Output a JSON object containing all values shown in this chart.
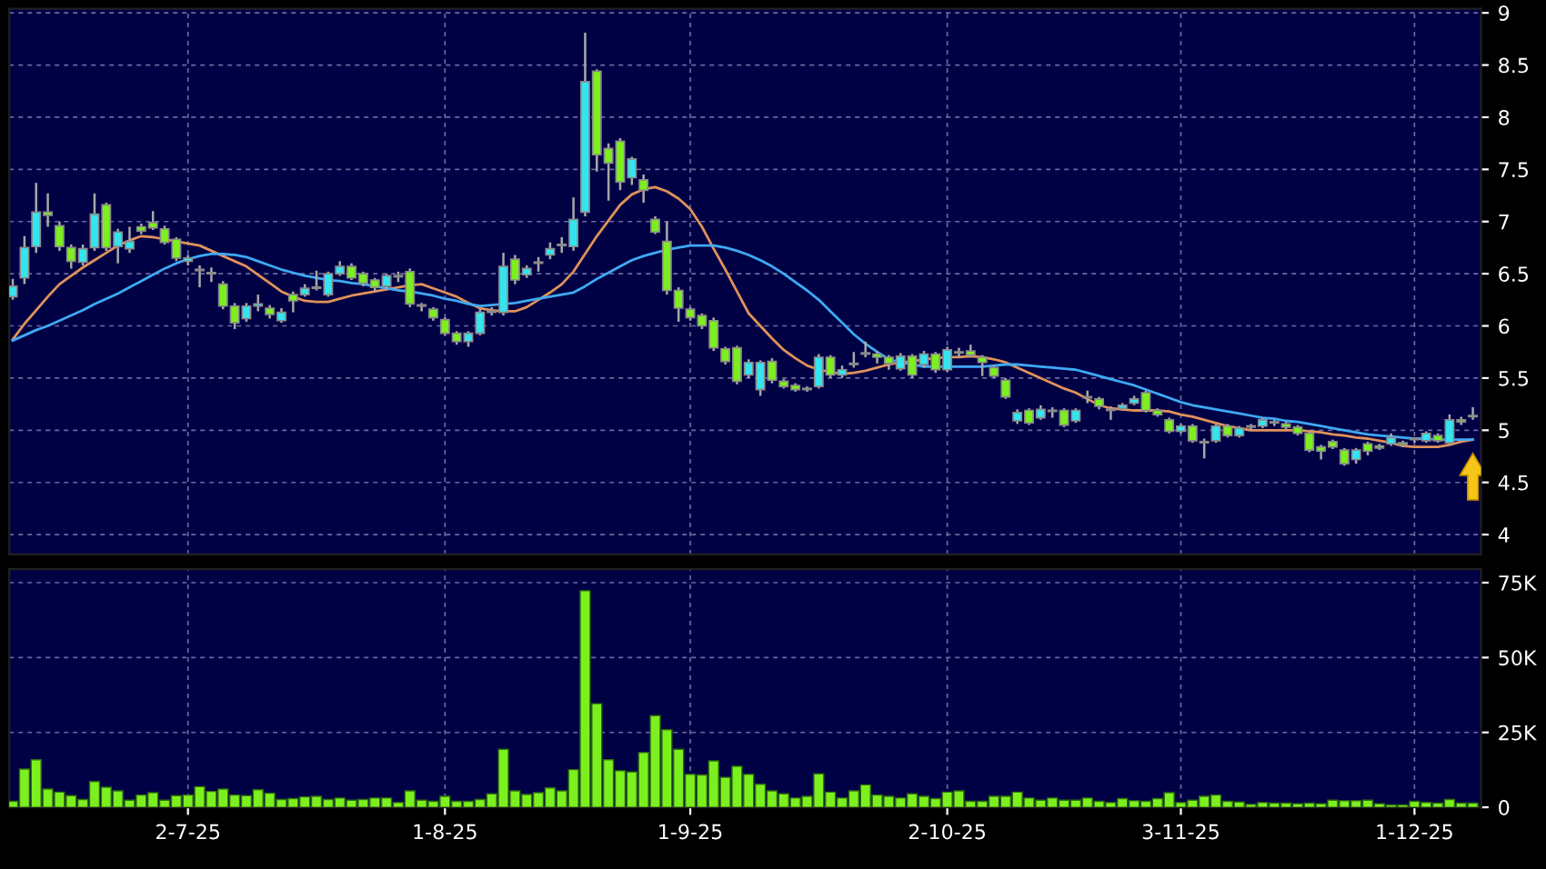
{
  "chart_data": [
    {
      "type": "candlestick",
      "categories": [
        null,
        null,
        null,
        null,
        null,
        null,
        null,
        null,
        null,
        null,
        null,
        null,
        null,
        null,
        null,
        null,
        null,
        null,
        null,
        null,
        null,
        null,
        null,
        null,
        null,
        null,
        null,
        null,
        null,
        null,
        null,
        null,
        null,
        null,
        null,
        null,
        null,
        null,
        null,
        null,
        null,
        null,
        null,
        null,
        null,
        null,
        null,
        null,
        null,
        null,
        null,
        null,
        null,
        null,
        null,
        null,
        null,
        null,
        null,
        null,
        null,
        null,
        null,
        null,
        null,
        null,
        null,
        null,
        null,
        null,
        null,
        null,
        null,
        null,
        null,
        null,
        null,
        null,
        null,
        null,
        null,
        null,
        null,
        null,
        null,
        null,
        null,
        null,
        null,
        null,
        null,
        null,
        null,
        null,
        null,
        null,
        null,
        null,
        null,
        null,
        null,
        null,
        null,
        null,
        null,
        null,
        null,
        null,
        null,
        null,
        null,
        null,
        null,
        null,
        null,
        null,
        null,
        null,
        null,
        null,
        null,
        null,
        null,
        null,
        null,
        null
      ],
      "ohlc": [
        [
          6.28,
          6.45,
          6.25,
          6.38
        ],
        [
          6.46,
          6.86,
          6.4,
          6.75
        ],
        [
          6.76,
          7.37,
          6.7,
          7.09
        ],
        [
          7.09,
          7.27,
          6.95,
          7.06
        ],
        [
          6.96,
          7.0,
          6.72,
          6.76
        ],
        [
          6.75,
          6.78,
          6.55,
          6.62
        ],
        [
          6.61,
          6.78,
          6.58,
          6.74
        ],
        [
          6.75,
          7.27,
          6.72,
          7.07
        ],
        [
          7.16,
          7.18,
          6.72,
          6.75
        ],
        [
          6.76,
          6.93,
          6.6,
          6.9
        ],
        [
          6.74,
          6.95,
          6.7,
          6.81
        ],
        [
          6.95,
          6.98,
          6.88,
          6.91
        ],
        [
          6.99,
          7.1,
          6.92,
          6.94
        ],
        [
          6.93,
          6.96,
          6.78,
          6.8
        ],
        [
          6.83,
          6.85,
          6.62,
          6.65
        ],
        [
          6.62,
          6.68,
          6.58,
          6.65
        ],
        [
          6.53,
          6.58,
          6.37,
          6.53
        ],
        [
          6.5,
          6.56,
          6.42,
          6.5
        ],
        [
          6.4,
          6.43,
          6.16,
          6.19
        ],
        [
          6.19,
          6.22,
          5.97,
          6.03
        ],
        [
          6.07,
          6.22,
          6.04,
          6.19
        ],
        [
          6.19,
          6.3,
          6.14,
          6.21
        ],
        [
          6.17,
          6.2,
          6.07,
          6.11
        ],
        [
          6.05,
          6.17,
          6.03,
          6.13
        ],
        [
          6.3,
          6.33,
          6.13,
          6.24
        ],
        [
          6.3,
          6.4,
          6.28,
          6.36
        ],
        [
          6.36,
          6.53,
          6.34,
          6.36
        ],
        [
          6.3,
          6.52,
          6.28,
          6.5
        ],
        [
          6.5,
          6.62,
          6.48,
          6.57
        ],
        [
          6.57,
          6.6,
          6.44,
          6.46
        ],
        [
          6.5,
          6.52,
          6.38,
          6.41
        ],
        [
          6.44,
          6.46,
          6.33,
          6.37
        ],
        [
          6.38,
          6.5,
          6.35,
          6.48
        ],
        [
          6.47,
          6.52,
          6.42,
          6.47
        ],
        [
          6.52,
          6.55,
          6.18,
          6.21
        ],
        [
          6.19,
          6.22,
          6.14,
          6.19
        ],
        [
          6.16,
          6.18,
          6.05,
          6.08
        ],
        [
          6.06,
          6.08,
          5.91,
          5.93
        ],
        [
          5.93,
          5.95,
          5.82,
          5.85
        ],
        [
          5.85,
          5.95,
          5.8,
          5.93
        ],
        [
          5.93,
          6.16,
          5.91,
          6.13
        ],
        [
          6.13,
          6.18,
          6.1,
          6.13
        ],
        [
          6.13,
          6.7,
          6.1,
          6.57
        ],
        [
          6.64,
          6.68,
          6.4,
          6.44
        ],
        [
          6.49,
          6.58,
          6.46,
          6.55
        ],
        [
          6.6,
          6.66,
          6.52,
          6.6
        ],
        [
          6.68,
          6.8,
          6.64,
          6.74
        ],
        [
          6.77,
          6.85,
          6.7,
          6.77
        ],
        [
          6.76,
          7.23,
          6.72,
          7.02
        ],
        [
          7.09,
          8.81,
          7.05,
          8.34
        ],
        [
          8.44,
          8.46,
          7.48,
          7.64
        ],
        [
          7.7,
          7.75,
          7.2,
          7.56
        ],
        [
          7.77,
          7.8,
          7.3,
          7.38
        ],
        [
          7.42,
          7.62,
          7.35,
          7.6
        ],
        [
          7.4,
          7.45,
          7.18,
          7.3
        ],
        [
          7.02,
          7.05,
          6.88,
          6.9
        ],
        [
          6.81,
          7.0,
          6.3,
          6.34
        ],
        [
          6.34,
          6.37,
          6.04,
          6.17
        ],
        [
          6.16,
          6.18,
          6.05,
          6.08
        ],
        [
          6.1,
          6.12,
          5.97,
          6.0
        ],
        [
          6.05,
          6.08,
          5.76,
          5.79
        ],
        [
          5.78,
          5.8,
          5.63,
          5.66
        ],
        [
          5.79,
          5.81,
          5.44,
          5.47
        ],
        [
          5.53,
          5.68,
          5.5,
          5.65
        ],
        [
          5.39,
          5.67,
          5.33,
          5.65
        ],
        [
          5.66,
          5.69,
          5.45,
          5.48
        ],
        [
          5.47,
          5.49,
          5.4,
          5.42
        ],
        [
          5.43,
          5.45,
          5.37,
          5.39
        ],
        [
          5.39,
          5.42,
          5.37,
          5.39
        ],
        [
          5.42,
          5.73,
          5.4,
          5.7
        ],
        [
          5.7,
          5.72,
          5.5,
          5.53
        ],
        [
          5.53,
          5.62,
          5.5,
          5.58
        ],
        [
          5.63,
          5.75,
          5.6,
          5.63
        ],
        [
          5.73,
          5.85,
          5.7,
          5.73
        ],
        [
          5.73,
          5.76,
          5.64,
          5.7
        ],
        [
          5.7,
          5.72,
          5.58,
          5.64
        ],
        [
          5.59,
          5.74,
          5.57,
          5.71
        ],
        [
          5.71,
          5.73,
          5.5,
          5.53
        ],
        [
          5.63,
          5.76,
          5.6,
          5.73
        ],
        [
          5.73,
          5.75,
          5.55,
          5.58
        ],
        [
          5.58,
          5.8,
          5.56,
          5.77
        ],
        [
          5.74,
          5.79,
          5.7,
          5.74
        ],
        [
          5.76,
          5.82,
          5.7,
          5.72
        ],
        [
          5.7,
          5.72,
          5.52,
          5.65
        ],
        [
          5.6,
          5.62,
          5.5,
          5.52
        ],
        [
          5.48,
          5.5,
          5.3,
          5.32
        ],
        [
          5.09,
          5.2,
          5.06,
          5.17
        ],
        [
          5.19,
          5.21,
          5.05,
          5.07
        ],
        [
          5.12,
          5.24,
          5.1,
          5.2
        ],
        [
          5.18,
          5.22,
          5.12,
          5.18
        ],
        [
          5.19,
          5.21,
          5.03,
          5.05
        ],
        [
          5.09,
          5.21,
          5.07,
          5.19
        ],
        [
          5.31,
          5.38,
          5.26,
          5.31
        ],
        [
          5.3,
          5.32,
          5.2,
          5.23
        ],
        [
          5.19,
          5.23,
          5.1,
          5.19
        ],
        [
          5.21,
          5.26,
          5.19,
          5.24
        ],
        [
          5.26,
          5.33,
          5.24,
          5.3
        ],
        [
          5.36,
          5.38,
          5.17,
          5.19
        ],
        [
          5.19,
          5.21,
          5.13,
          5.15
        ],
        [
          5.1,
          5.12,
          4.97,
          4.99
        ],
        [
          4.99,
          5.06,
          4.97,
          5.04
        ],
        [
          5.04,
          5.06,
          4.88,
          4.9
        ],
        [
          4.88,
          4.92,
          4.73,
          4.88
        ],
        [
          4.9,
          5.06,
          4.88,
          5.04
        ],
        [
          5.04,
          5.06,
          4.93,
          4.95
        ],
        [
          4.95,
          5.04,
          4.93,
          5.02
        ],
        [
          5.03,
          5.06,
          5.0,
          5.03
        ],
        [
          5.04,
          5.12,
          5.02,
          5.1
        ],
        [
          5.07,
          5.1,
          5.04,
          5.07
        ],
        [
          5.06,
          5.08,
          5.01,
          5.03
        ],
        [
          5.03,
          5.05,
          4.95,
          4.97
        ],
        [
          4.97,
          4.99,
          4.79,
          4.81
        ],
        [
          4.84,
          4.86,
          4.72,
          4.8
        ],
        [
          4.89,
          4.91,
          4.82,
          4.84
        ],
        [
          4.81,
          4.83,
          4.66,
          4.68
        ],
        [
          4.72,
          4.83,
          4.68,
          4.81
        ],
        [
          4.87,
          4.89,
          4.76,
          4.8
        ],
        [
          4.85,
          4.87,
          4.81,
          4.83
        ],
        [
          4.87,
          4.97,
          4.85,
          4.93
        ],
        [
          4.88,
          4.9,
          4.84,
          4.86
        ],
        [
          4.91,
          4.93,
          4.88,
          4.91
        ],
        [
          4.9,
          4.99,
          4.88,
          4.97
        ],
        [
          4.95,
          4.97,
          4.88,
          4.9
        ],
        [
          4.88,
          5.15,
          4.86,
          5.1
        ],
        [
          5.1,
          5.13,
          5.05,
          5.08
        ],
        [
          5.13,
          5.22,
          5.1,
          5.13
        ]
      ],
      "colors": [
        "#33e5f0",
        "#33e5f0",
        "#33e5f0",
        "#7cf01e",
        "#7cf01e",
        "#7cf01e",
        "#33e5f0",
        "#33e5f0",
        "#7cf01e",
        "#33e5f0",
        "#33e5f0",
        "#7cf01e",
        "#7cf01e",
        "#7cf01e",
        "#7cf01e",
        "#33e5f0",
        "#9a9a9a",
        "#9a9a9a",
        "#7cf01e",
        "#7cf01e",
        "#33e5f0",
        "#33e5f0",
        "#7cf01e",
        "#33e5f0",
        "#7cf01e",
        "#33e5f0",
        "#9a9a9a",
        "#33e5f0",
        "#33e5f0",
        "#7cf01e",
        "#7cf01e",
        "#7cf01e",
        "#33e5f0",
        "#9a9a9a",
        "#7cf01e",
        "#9a9a9a",
        "#7cf01e",
        "#7cf01e",
        "#7cf01e",
        "#33e5f0",
        "#33e5f0",
        "#9a9a9a",
        "#33e5f0",
        "#7cf01e",
        "#33e5f0",
        "#9a9a9a",
        "#33e5f0",
        "#9a9a9a",
        "#33e5f0",
        "#33e5f0",
        "#7cf01e",
        "#7cf01e",
        "#7cf01e",
        "#33e5f0",
        "#7cf01e",
        "#7cf01e",
        "#7cf01e",
        "#7cf01e",
        "#7cf01e",
        "#7cf01e",
        "#7cf01e",
        "#7cf01e",
        "#7cf01e",
        "#33e5f0",
        "#33e5f0",
        "#7cf01e",
        "#7cf01e",
        "#7cf01e",
        "#9a9a9a",
        "#33e5f0",
        "#7cf01e",
        "#33e5f0",
        "#9a9a9a",
        "#9a9a9a",
        "#7cf01e",
        "#7cf01e",
        "#33e5f0",
        "#7cf01e",
        "#33e5f0",
        "#7cf01e",
        "#33e5f0",
        "#9a9a9a",
        "#7cf01e",
        "#7cf01e",
        "#7cf01e",
        "#7cf01e",
        "#33e5f0",
        "#7cf01e",
        "#33e5f0",
        "#9a9a9a",
        "#7cf01e",
        "#33e5f0",
        "#9a9a9a",
        "#7cf01e",
        "#9a9a9a",
        "#33e5f0",
        "#33e5f0",
        "#7cf01e",
        "#7cf01e",
        "#7cf01e",
        "#33e5f0",
        "#7cf01e",
        "#9a9a9a",
        "#33e5f0",
        "#7cf01e",
        "#33e5f0",
        "#9a9a9a",
        "#33e5f0",
        "#9a9a9a",
        "#7cf01e",
        "#7cf01e",
        "#7cf01e",
        "#7cf01e",
        "#7cf01e",
        "#7cf01e",
        "#33e5f0",
        "#7cf01e",
        "#7cf01e",
        "#33e5f0",
        "#7cf01e",
        "#9a9a9a",
        "#33e5f0",
        "#7cf01e",
        "#33e5f0",
        "#7cf01e",
        "#9a9a9a"
      ],
      "series": [
        {
          "type": "line",
          "color": "#e0925a",
          "values": [
            5.87,
            6.02,
            6.15,
            6.28,
            6.4,
            6.48,
            6.56,
            6.63,
            6.7,
            6.77,
            6.82,
            6.86,
            6.85,
            6.83,
            6.81,
            6.79,
            6.77,
            6.72,
            6.67,
            6.62,
            6.57,
            6.49,
            6.41,
            6.33,
            6.28,
            6.24,
            6.23,
            6.23,
            6.26,
            6.29,
            6.31,
            6.33,
            6.35,
            6.37,
            6.39,
            6.4,
            6.36,
            6.32,
            6.28,
            6.22,
            6.17,
            6.15,
            6.14,
            6.14,
            6.18,
            6.25,
            6.32,
            6.4,
            6.52,
            6.69,
            6.86,
            7.01,
            7.16,
            7.26,
            7.31,
            7.33,
            7.29,
            7.22,
            7.12,
            6.95,
            6.74,
            6.54,
            6.33,
            6.12,
            6.0,
            5.88,
            5.77,
            5.69,
            5.62,
            5.58,
            5.56,
            5.54,
            5.55,
            5.57,
            5.6,
            5.63,
            5.65,
            5.66,
            5.68,
            5.69,
            5.7,
            5.7,
            5.71,
            5.7,
            5.68,
            5.65,
            5.6,
            5.55,
            5.5,
            5.45,
            5.4,
            5.36,
            5.3,
            5.24,
            5.21,
            5.2,
            5.19,
            5.19,
            5.19,
            5.18,
            5.15,
            5.13,
            5.1,
            5.07,
            5.04,
            5.02,
            5.0,
            5.0,
            5.0,
            5.0,
            5.0,
            4.99,
            4.98,
            4.96,
            4.95,
            4.93,
            4.92,
            4.9,
            4.88,
            4.85,
            4.84,
            4.84,
            4.84,
            4.86,
            4.89,
            4.91
          ]
        },
        {
          "type": "line",
          "color": "#3fa9f5",
          "values": [
            5.86,
            5.91,
            5.96,
            6.0,
            6.05,
            6.1,
            6.15,
            6.21,
            6.26,
            6.31,
            6.37,
            6.43,
            6.49,
            6.55,
            6.6,
            6.64,
            6.67,
            6.69,
            6.69,
            6.68,
            6.66,
            6.62,
            6.58,
            6.54,
            6.51,
            6.48,
            6.46,
            6.44,
            6.43,
            6.41,
            6.4,
            6.38,
            6.36,
            6.34,
            6.33,
            6.31,
            6.29,
            6.26,
            6.24,
            6.21,
            6.19,
            6.2,
            6.21,
            6.22,
            6.24,
            6.26,
            6.28,
            6.3,
            6.32,
            6.38,
            6.45,
            6.51,
            6.57,
            6.63,
            6.67,
            6.7,
            6.73,
            6.75,
            6.77,
            6.77,
            6.77,
            6.75,
            6.72,
            6.68,
            6.63,
            6.57,
            6.5,
            6.42,
            6.34,
            6.25,
            6.14,
            6.03,
            5.92,
            5.83,
            5.75,
            5.68,
            5.65,
            5.63,
            5.61,
            5.61,
            5.61,
            5.61,
            5.61,
            5.61,
            5.62,
            5.63,
            5.63,
            5.62,
            5.61,
            5.6,
            5.59,
            5.58,
            5.55,
            5.52,
            5.49,
            5.46,
            5.43,
            5.39,
            5.35,
            5.31,
            5.27,
            5.24,
            5.22,
            5.2,
            5.18,
            5.16,
            5.14,
            5.12,
            5.11,
            5.09,
            5.08,
            5.06,
            5.04,
            5.02,
            5.0,
            4.98,
            4.96,
            4.95,
            4.94,
            4.93,
            4.92,
            4.92,
            4.91,
            4.91,
            4.91,
            4.91
          ]
        }
      ],
      "ylim": [
        3.81,
        9.04
      ],
      "yticks": [
        4,
        4.5,
        5,
        5.5,
        6,
        6.5,
        7,
        7.5,
        8,
        8.5,
        9
      ],
      "grid": true,
      "tick_labels": "y"
    },
    {
      "type": "bar",
      "categories": [
        null,
        null,
        null,
        null,
        null,
        null,
        null,
        null,
        null,
        null,
        null,
        null,
        null,
        null,
        null,
        "2-7-25",
        null,
        null,
        null,
        null,
        null,
        null,
        null,
        null,
        null,
        null,
        null,
        null,
        null,
        null,
        null,
        null,
        null,
        null,
        null,
        null,
        null,
        "1-8-25",
        null,
        null,
        null,
        null,
        null,
        null,
        null,
        null,
        null,
        null,
        null,
        null,
        null,
        null,
        null,
        null,
        null,
        null,
        null,
        null,
        "1-9-25",
        null,
        null,
        null,
        null,
        null,
        null,
        null,
        null,
        null,
        null,
        null,
        null,
        null,
        null,
        null,
        null,
        null,
        null,
        null,
        null,
        null,
        "2-10-25",
        null,
        null,
        null,
        null,
        null,
        null,
        null,
        null,
        null,
        null,
        null,
        null,
        null,
        null,
        null,
        null,
        null,
        null,
        null,
        "3-11-25",
        null,
        null,
        null,
        null,
        null,
        null,
        null,
        null,
        null,
        null,
        null,
        null,
        null,
        null,
        null,
        null,
        null,
        null,
        null,
        "1-12-25",
        null,
        null,
        null,
        null,
        null
      ],
      "values": [
        2000,
        12800,
        15900,
        6100,
        5100,
        3900,
        2600,
        8600,
        6700,
        5500,
        2400,
        4100,
        4900,
        2400,
        3900,
        4100,
        6900,
        5300,
        6100,
        4100,
        3900,
        5900,
        4700,
        2600,
        2900,
        3500,
        3700,
        2600,
        3100,
        2400,
        2600,
        3100,
        3100,
        1600,
        5500,
        2400,
        2000,
        3700,
        2000,
        2000,
        2600,
        4500,
        19400,
        5500,
        4300,
        4900,
        6500,
        5500,
        12600,
        72300,
        34600,
        15900,
        12200,
        11800,
        18300,
        30600,
        25900,
        19400,
        11000,
        10800,
        15500,
        10000,
        13700,
        11000,
        7700,
        5500,
        4500,
        3100,
        3700,
        11200,
        5100,
        3100,
        5500,
        7500,
        4100,
        3700,
        3100,
        4500,
        3700,
        2900,
        5100,
        5500,
        2000,
        2000,
        3700,
        3700,
        5100,
        3100,
        2400,
        3100,
        2400,
        2400,
        3100,
        2000,
        1600,
        2900,
        2200,
        2000,
        2900,
        4900,
        1600,
        2400,
        3700,
        4100,
        2000,
        1800,
        1000,
        1600,
        1400,
        1400,
        1200,
        1400,
        1200,
        2400,
        2200,
        2200,
        2400,
        1200,
        800,
        800,
        2000,
        1600,
        1400,
        2600,
        1400,
        1400
      ],
      "color": "#7cf01e",
      "ylim": [
        0,
        79500
      ],
      "yticks": [
        0,
        {
          "value": 25000,
          "label": "25K"
        },
        {
          "value": 50000,
          "label": "50K"
        },
        {
          "value": 75000,
          "label": "75K"
        }
      ],
      "grid": true
    }
  ]
}
